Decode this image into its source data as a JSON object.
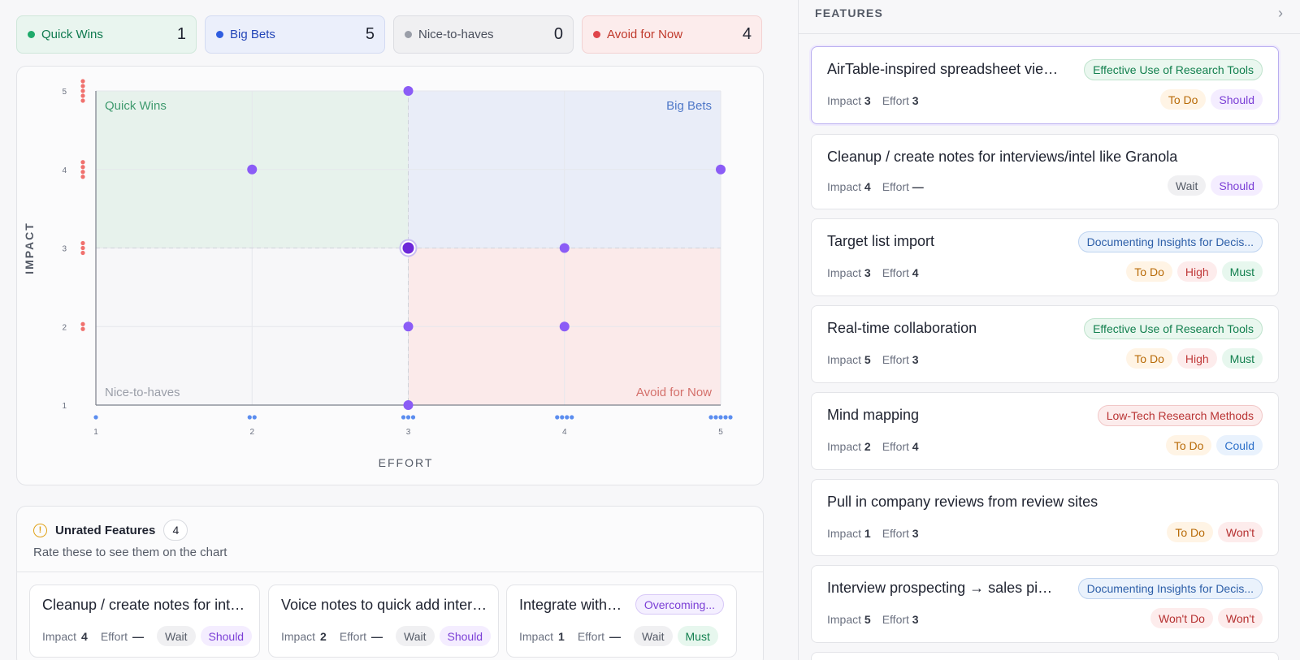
{
  "summary": [
    {
      "label": "Quick Wins",
      "count": "1"
    },
    {
      "label": "Big Bets",
      "count": "5"
    },
    {
      "label": "Nice-to-haves",
      "count": "0"
    },
    {
      "label": "Avoid for Now",
      "count": "4"
    }
  ],
  "chart_data": {
    "type": "scatter",
    "xlabel": "EFFORT",
    "ylabel": "IMPACT",
    "xlim": [
      1,
      5
    ],
    "ylim": [
      1,
      5
    ],
    "x_ticks": [
      "1",
      "2",
      "3",
      "4",
      "5"
    ],
    "y_ticks": [
      "1",
      "2",
      "3",
      "4",
      "5"
    ],
    "quadrants": {
      "top_left": "Quick Wins",
      "top_right": "Big Bets",
      "bottom_left": "Nice-to-haves",
      "bottom_right": "Avoid for Now"
    },
    "points": [
      {
        "x": 3,
        "y": 5
      },
      {
        "x": 2,
        "y": 4
      },
      {
        "x": 5,
        "y": 4
      },
      {
        "x": 3,
        "y": 3,
        "selected": true
      },
      {
        "x": 4,
        "y": 3
      },
      {
        "x": 3,
        "y": 2
      },
      {
        "x": 4,
        "y": 2
      },
      {
        "x": 3,
        "y": 1
      }
    ],
    "x_distribution": [
      1,
      2,
      3,
      4,
      5
    ],
    "y_distribution": [
      5,
      4,
      3,
      2,
      0
    ],
    "colors": {
      "point": "#8b5cf6",
      "selected": "#6d28d9",
      "x_dist": "#5b8def",
      "y_dist": "#f0716e",
      "quick_wins": "#e7f2ec",
      "big_bets": "#e9edf8",
      "avoid": "#fbeaea"
    }
  },
  "unrated": {
    "title": "Unrated Features",
    "count": "4",
    "subtitle": "Rate these to see them on the chart",
    "cards": [
      {
        "title": "Cleanup / create notes for interviews/intel like Granola",
        "impact_label": "Impact",
        "impact": "4",
        "effort_label": "Effort",
        "effort": "—",
        "pills": [
          "Wait",
          "Should"
        ]
      },
      {
        "title": "Voice notes to quick add interviews",
        "impact_label": "Impact",
        "impact": "2",
        "effort_label": "Effort",
        "effort": "—",
        "pills": [
          "Wait",
          "Should"
        ]
      },
      {
        "title": "Integrate with tools",
        "tag": "Overcoming...",
        "impact_label": "Impact",
        "impact": "1",
        "effort_label": "Effort",
        "effort": "—",
        "pills": [
          "Wait",
          "Must"
        ]
      }
    ]
  },
  "features": {
    "title": "FEATURES",
    "items": [
      {
        "title": "AirTable-inspired spreadsheet view for research",
        "tag": "Effective Use of Research Tools",
        "impact": "3",
        "effort": "3",
        "pills": [
          "To Do",
          "Should"
        ]
      },
      {
        "title": "Cleanup / create notes for interviews/intel like Granola",
        "tag": "",
        "impact": "4",
        "effort": "—",
        "pills": [
          "Wait",
          "Should"
        ]
      },
      {
        "title": "Target list import",
        "tag": "Documenting Insights for Decis...",
        "impact": "3",
        "effort": "4",
        "pills": [
          "To Do",
          "High",
          "Must"
        ]
      },
      {
        "title": "Real-time collaboration",
        "tag": "Effective Use of Research Tools",
        "impact": "5",
        "effort": "3",
        "pills": [
          "To Do",
          "High",
          "Must"
        ]
      },
      {
        "title": "Mind mapping",
        "tag": "Low-Tech Research Methods",
        "impact": "2",
        "effort": "4",
        "pills": [
          "To Do",
          "Could"
        ]
      },
      {
        "title": "Pull in company reviews from review sites",
        "tag": "",
        "impact": "1",
        "effort": "3",
        "pills": [
          "To Do",
          "Won't"
        ]
      },
      {
        "title": "Interview prospecting → sales pipeline",
        "tag": "Documenting Insights for Decis...",
        "impact": "5",
        "effort": "3",
        "pills": [
          "Won't Do",
          "Won't"
        ]
      }
    ],
    "labels": {
      "impact": "Impact",
      "effort": "Effort"
    }
  }
}
